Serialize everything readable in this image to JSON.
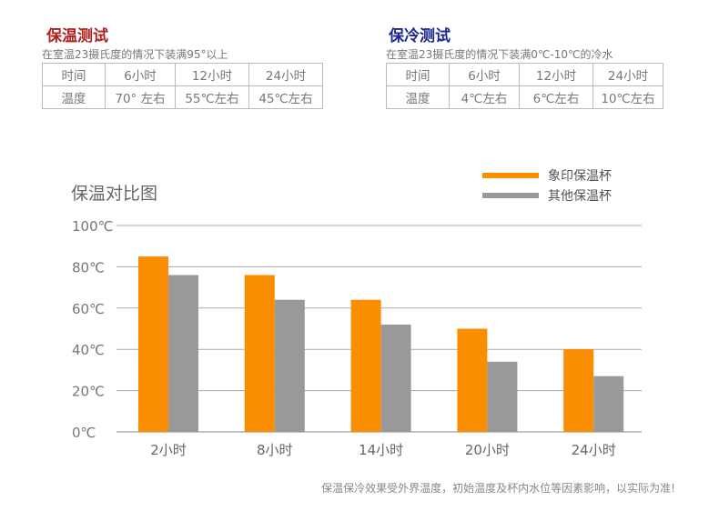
{
  "hot_test": {
    "title": "保温测试",
    "desc": "在室温23摄氏度的情况下装满95°以上",
    "header": [
      "时间",
      "6小时",
      "12小时",
      "24小时"
    ],
    "row": [
      "温度",
      "70° 左右",
      "55℃左右",
      "45℃左右"
    ]
  },
  "cold_test": {
    "title": "保冷测试",
    "desc": "在室温23摄氏度的情况下装满0℃-10℃的冷水",
    "header": [
      "时间",
      "6小时",
      "12小时",
      "24小时"
    ],
    "row": [
      "温度",
      "4℃左右",
      "6℃左右",
      "10℃左右"
    ]
  },
  "chart_data": {
    "type": "bar",
    "title": "保温对比图",
    "categories": [
      "2小时",
      "8小时",
      "14小时",
      "20小时",
      "24小时"
    ],
    "series": [
      {
        "name": "象印保温杯",
        "color": "#fb8e00",
        "values": [
          85,
          76,
          64,
          50,
          40
        ]
      },
      {
        "name": "其他保温杯",
        "color": "#999999",
        "values": [
          76,
          64,
          52,
          34,
          27
        ]
      }
    ],
    "yticks": [
      "0℃",
      "20℃",
      "40℃",
      "60℃",
      "80℃",
      "100℃"
    ],
    "ylim": [
      0,
      100
    ],
    "grid": true,
    "legend_position": "top-right"
  },
  "note": "保温保冷效果受外界温度，初始温度及杯内水位等因素影响，以实际为准!"
}
